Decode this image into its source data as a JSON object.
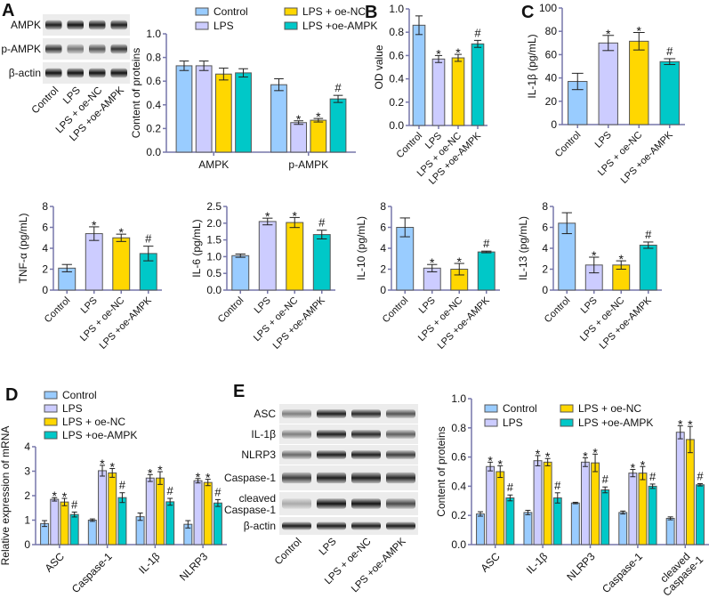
{
  "colors": {
    "Control": "#99ccff",
    "LPS": "#ccccff",
    "LPS + oe-NC": "#ffd700",
    "LPS +oe-AMPK": "#00c8c8",
    "edge": "#555555",
    "axis": "#7777aa"
  },
  "groups": [
    "Control",
    "LPS",
    "LPS + oe-NC",
    "LPS +oe-AMPK"
  ],
  "panels": {
    "A": "A",
    "B": "B",
    "C": "C",
    "D": "D",
    "E": "E"
  },
  "blot_A": {
    "rows": [
      "AMPK",
      "p-AMPK",
      "β-actin"
    ],
    "lanes": [
      "Control",
      "LPS",
      "LPS + oe-NC",
      "LPS +oe-AMPK"
    ]
  },
  "blot_E": {
    "rows": [
      "ASC",
      "IL-1β",
      "NLRP3",
      "Caspase-1",
      "cleaved Caspase-1",
      "β-actin"
    ],
    "lanes": [
      "Control",
      "LPS",
      "LPS + oe-NC",
      "LPS +oe-AMPK"
    ]
  },
  "chart_data": [
    {
      "id": "A",
      "type": "bar",
      "ylabel": "Content of proteins",
      "ylim": [
        0,
        1.0
      ],
      "yticks": [
        "0.0",
        "0.2",
        "0.4",
        "0.6",
        "0.8",
        "1.0"
      ],
      "categories": [
        "AMPK",
        "p-AMPK"
      ],
      "series": [
        {
          "name": "Control",
          "values": [
            0.73,
            0.57
          ],
          "errors": [
            0.04,
            0.05
          ],
          "marks": [
            "",
            ""
          ]
        },
        {
          "name": "LPS",
          "values": [
            0.73,
            0.25
          ],
          "errors": [
            0.04,
            0.015
          ],
          "marks": [
            "",
            "*"
          ]
        },
        {
          "name": "LPS + oe-NC",
          "values": [
            0.66,
            0.27
          ],
          "errors": [
            0.05,
            0.015
          ],
          "marks": [
            "",
            "*"
          ]
        },
        {
          "name": "LPS +oe-AMPK",
          "values": [
            0.67,
            0.45
          ],
          "errors": [
            0.035,
            0.03
          ],
          "marks": [
            "",
            "#"
          ]
        }
      ],
      "legend": "top"
    },
    {
      "id": "B",
      "type": "bar",
      "ylabel": "OD value",
      "ylim": [
        0,
        1.0
      ],
      "yticks": [
        "0.0",
        "0.2",
        "0.4",
        "0.6",
        "0.8",
        "1.0"
      ],
      "categories": [
        "Control",
        "LPS",
        "LPS + oe-NC",
        "LPS +oe-AMPK"
      ],
      "values": [
        0.86,
        0.57,
        0.58,
        0.7
      ],
      "errors": [
        0.08,
        0.03,
        0.03,
        0.03
      ],
      "marks": [
        "",
        "*",
        "*",
        "#"
      ]
    },
    {
      "id": "C",
      "type": "bar",
      "ylabel": "IL-1β (pg/mL)",
      "ylim": [
        0,
        100
      ],
      "yticks": [
        "0",
        "20",
        "40",
        "60",
        "80",
        "100"
      ],
      "categories": [
        "Control",
        "LPS",
        "LPS + oe-NC",
        "LPS +oe-AMPK"
      ],
      "values": [
        37,
        70,
        71.5,
        54
      ],
      "errors": [
        7,
        6.5,
        7.5,
        2.5
      ],
      "marks": [
        "",
        "*",
        "*",
        "#"
      ]
    },
    {
      "id": "TNF",
      "type": "bar",
      "ylabel": "TNF-α (pg/mL)",
      "ylim": [
        0,
        8
      ],
      "yticks": [
        "0",
        "2",
        "4",
        "6",
        "8"
      ],
      "categories": [
        "Control",
        "LPS",
        "LPS + oe-NC",
        "LPS +oe-AMPK"
      ],
      "values": [
        2.1,
        5.4,
        5.0,
        3.5
      ],
      "errors": [
        0.35,
        0.65,
        0.35,
        0.7
      ],
      "marks": [
        "",
        "*",
        "*",
        "#"
      ]
    },
    {
      "id": "IL6",
      "type": "bar",
      "ylabel": "IL-6 (pg/mL)",
      "ylim": [
        0,
        2.5
      ],
      "yticks": [
        "0.0",
        "0.5",
        "1.0",
        "1.5",
        "2.0",
        "2.5"
      ],
      "categories": [
        "Control",
        "LPS",
        "LPS + oe-NC",
        "LPS +oe-AMPK"
      ],
      "values": [
        1.03,
        2.05,
        2.02,
        1.66
      ],
      "errors": [
        0.05,
        0.1,
        0.15,
        0.13
      ],
      "marks": [
        "",
        "*",
        "*",
        "#"
      ]
    },
    {
      "id": "IL10",
      "type": "bar",
      "ylabel": "IL-10 (pg/mL)",
      "ylim": [
        0,
        8
      ],
      "yticks": [
        "0",
        "2",
        "4",
        "6",
        "8"
      ],
      "categories": [
        "Control",
        "LPS",
        "LPS + oe-NC",
        "LPS +oe-AMPK"
      ],
      "values": [
        6.0,
        2.1,
        2.0,
        3.65
      ],
      "errors": [
        0.9,
        0.35,
        0.55,
        0.08
      ],
      "marks": [
        "",
        "*",
        "*",
        "#"
      ]
    },
    {
      "id": "IL13",
      "type": "bar",
      "ylabel": "IL-13 (pg/mL)",
      "ylim": [
        0,
        8
      ],
      "yticks": [
        "0",
        "2",
        "4",
        "6",
        "8"
      ],
      "categories": [
        "Control",
        "LPS",
        "LPS + oe-NC",
        "LPS +oe-AMPK"
      ],
      "values": [
        6.4,
        2.4,
        2.4,
        4.3
      ],
      "errors": [
        1.0,
        0.75,
        0.4,
        0.3
      ],
      "marks": [
        "",
        "*",
        "*",
        "#"
      ]
    },
    {
      "id": "D",
      "type": "bar",
      "ylabel": "Relative expression of mRNA",
      "ylim": [
        0,
        4
      ],
      "yticks": [
        "0",
        "1",
        "2",
        "3",
        "4"
      ],
      "categories": [
        "ASC",
        "Caspase-1",
        "IL-1β",
        "NLRP3"
      ],
      "series": [
        {
          "name": "Control",
          "values": [
            0.86,
            1.0,
            1.14,
            0.83
          ],
          "errors": [
            0.12,
            0.05,
            0.15,
            0.15
          ],
          "marks": [
            "",
            "",
            "",
            ""
          ]
        },
        {
          "name": "LPS",
          "values": [
            1.85,
            3.02,
            2.72,
            2.61
          ],
          "errors": [
            0.07,
            0.22,
            0.14,
            0.09
          ],
          "marks": [
            "*",
            "*",
            "*",
            "*"
          ]
        },
        {
          "name": "LPS + oe-NC",
          "values": [
            1.74,
            2.93,
            2.72,
            2.54
          ],
          "errors": [
            0.15,
            0.18,
            0.26,
            0.13
          ],
          "marks": [
            "*",
            "*",
            "*",
            "*"
          ]
        },
        {
          "name": "LPS +oe-AMPK",
          "values": [
            1.23,
            1.92,
            1.75,
            1.7
          ],
          "errors": [
            0.1,
            0.2,
            0.14,
            0.14
          ],
          "marks": [
            "#",
            "#",
            "#",
            "#"
          ]
        }
      ],
      "legend": "top-left"
    },
    {
      "id": "E",
      "type": "bar",
      "ylabel": "Content of proteins",
      "ylim": [
        0,
        1.0
      ],
      "yticks": [
        "0.0",
        "0.2",
        "0.4",
        "0.6",
        "0.8",
        "1.0"
      ],
      "categories": [
        "ASC",
        "IL-1β",
        "NLRP3",
        "Caspase-1",
        "cleaved Caspase-1"
      ],
      "series": [
        {
          "name": "Control",
          "values": [
            0.21,
            0.22,
            0.285,
            0.22,
            0.18
          ],
          "errors": [
            0.015,
            0.015,
            0.005,
            0.01,
            0.01
          ],
          "marks": [
            "",
            "",
            "",
            "",
            ""
          ]
        },
        {
          "name": "LPS",
          "values": [
            0.535,
            0.575,
            0.565,
            0.49,
            0.77
          ],
          "errors": [
            0.03,
            0.035,
            0.03,
            0.025,
            0.045
          ],
          "marks": [
            "*",
            "*",
            "*",
            "*",
            "*"
          ]
        },
        {
          "name": "LPS + oe-NC",
          "values": [
            0.5,
            0.565,
            0.56,
            0.49,
            0.72
          ],
          "errors": [
            0.04,
            0.025,
            0.06,
            0.045,
            0.09
          ],
          "marks": [
            "*",
            "*",
            "*",
            "*",
            "*"
          ]
        },
        {
          "name": "LPS +oe-AMPK",
          "values": [
            0.32,
            0.32,
            0.375,
            0.4,
            0.41
          ],
          "errors": [
            0.02,
            0.035,
            0.02,
            0.015,
            0.008
          ],
          "marks": [
            "#",
            "#",
            "#",
            "#",
            "#"
          ]
        }
      ],
      "legend": "top"
    }
  ]
}
